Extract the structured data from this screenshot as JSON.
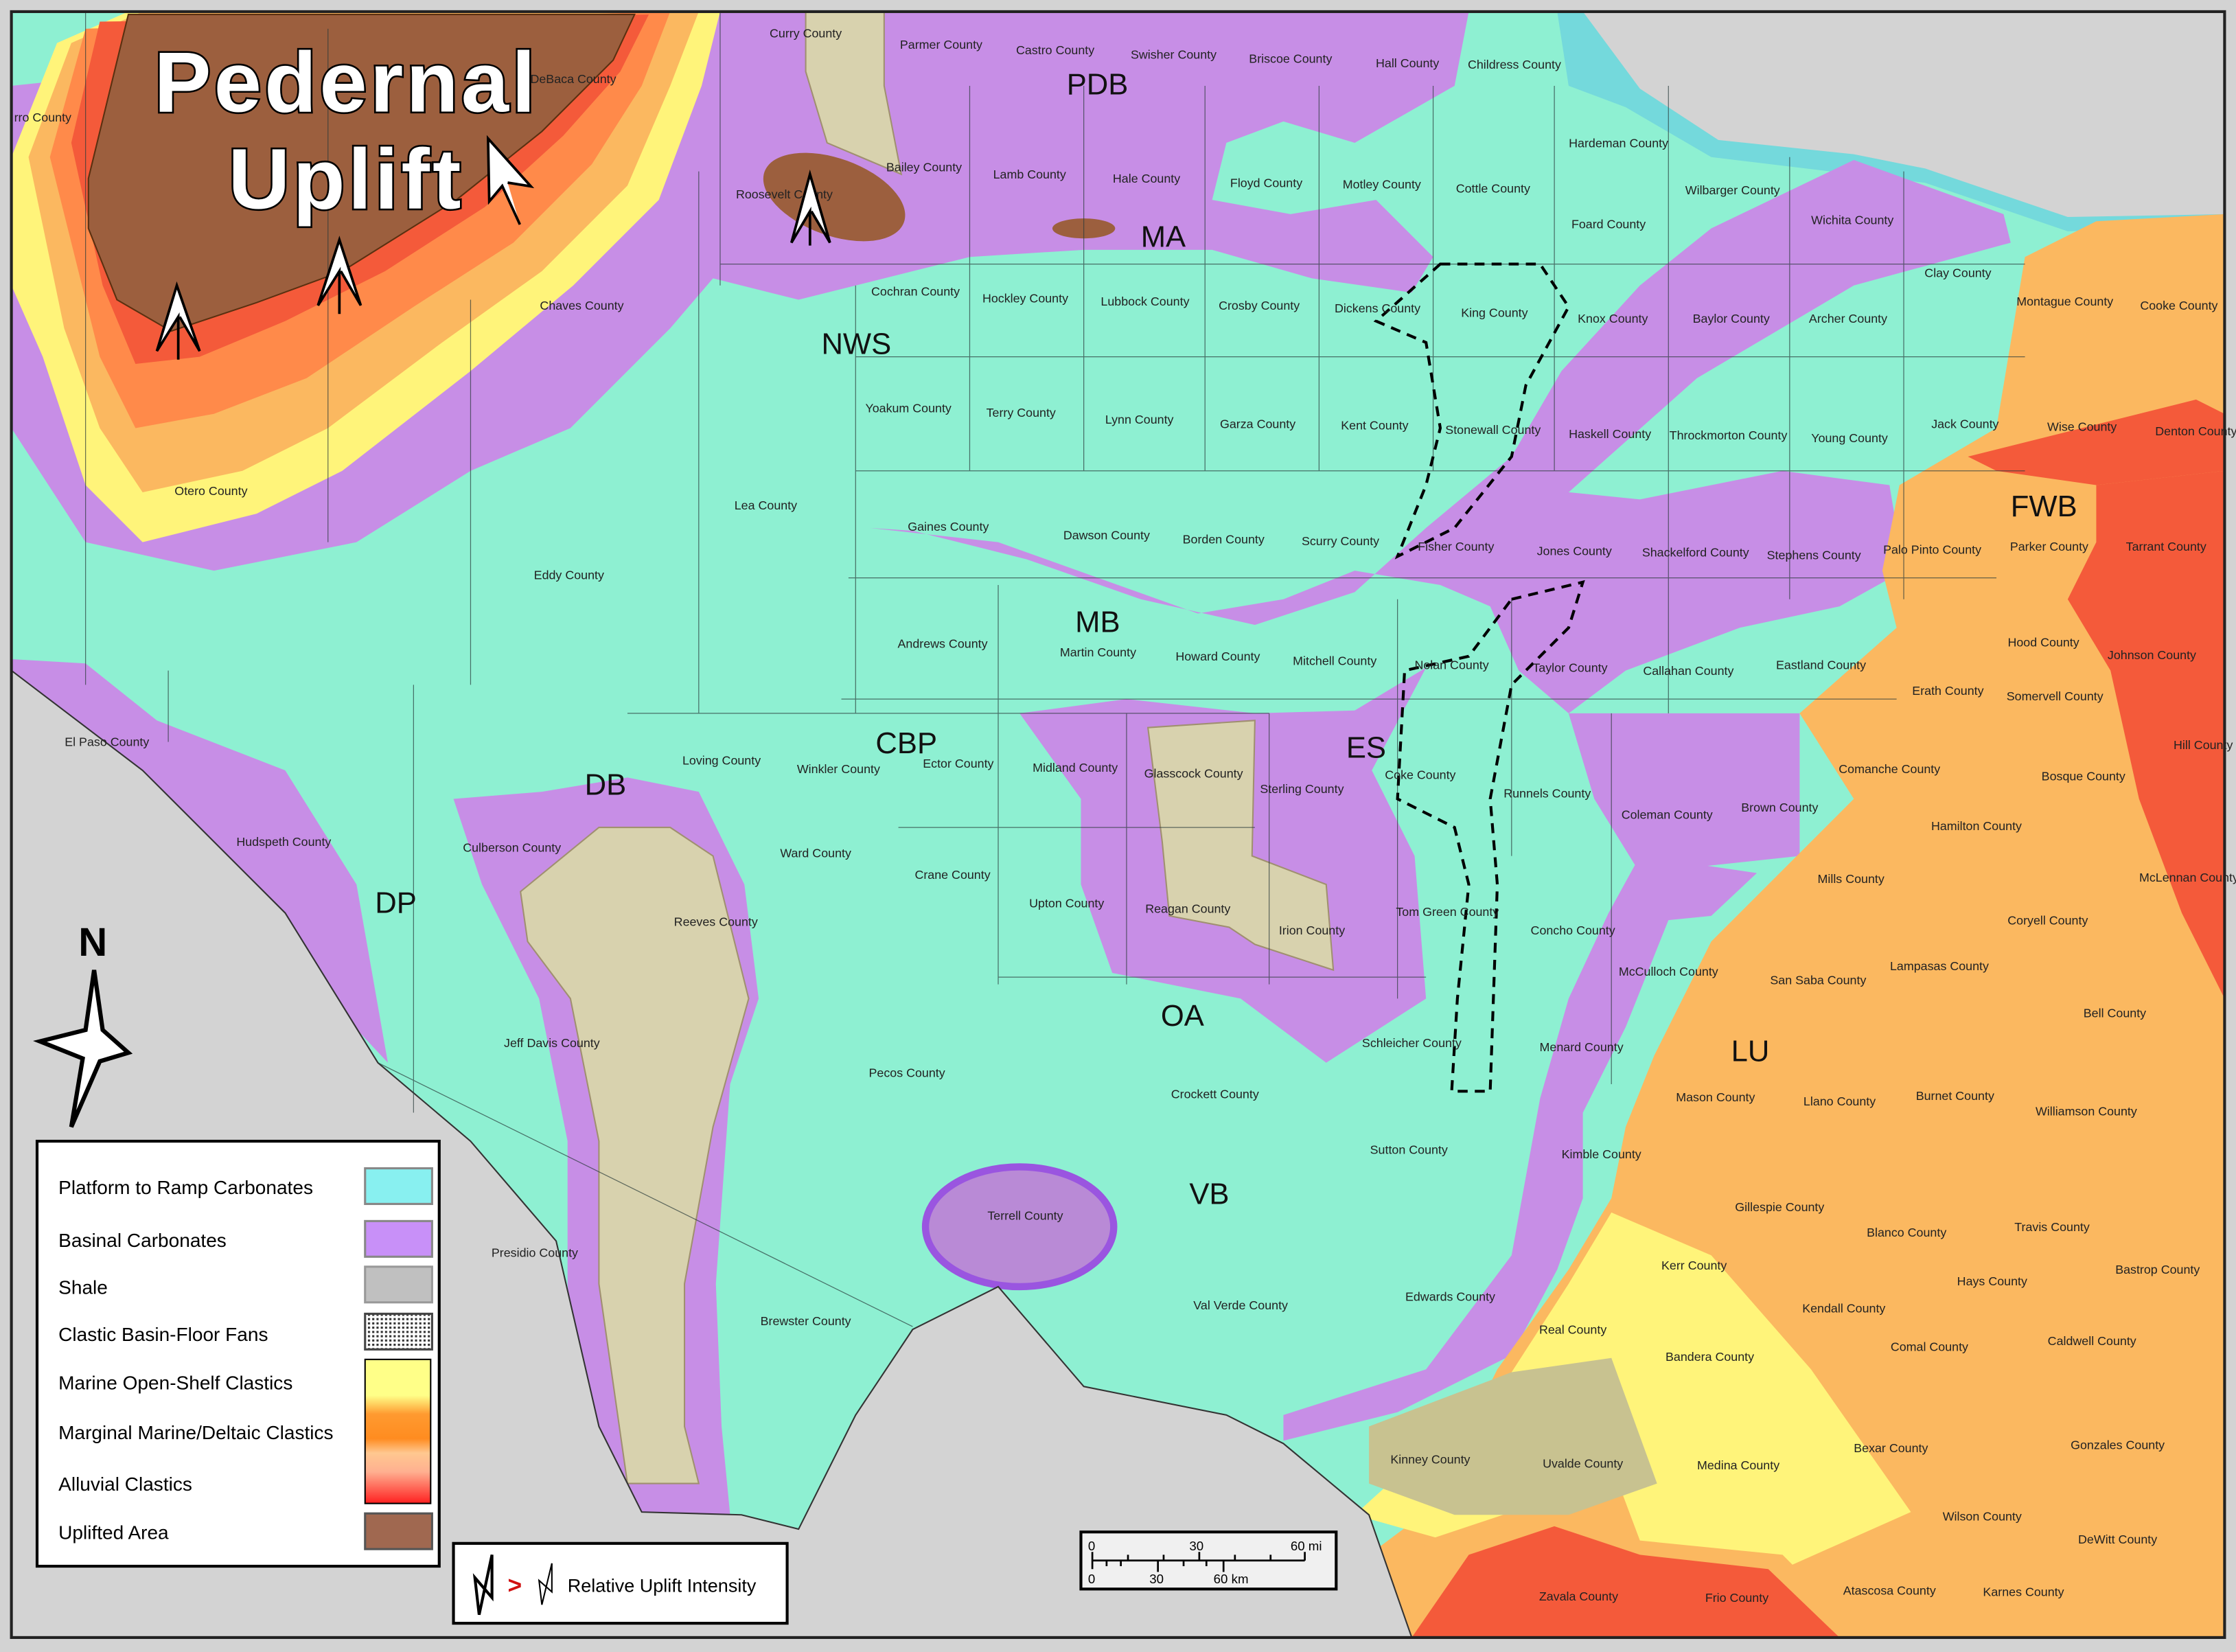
{
  "map": {
    "title_line1": "Pedernal",
    "title_line2": "Uplift",
    "north_label": "N",
    "regions": [
      "PDB",
      "MA",
      "NWS",
      "MB",
      "CBP",
      "DB",
      "DP",
      "ES",
      "OA",
      "VB",
      "LU",
      "FWB"
    ],
    "counties": [
      "Curry County",
      "Parmer County",
      "Castro County",
      "Swisher County",
      "Briscoe County",
      "Hall County",
      "Childress County",
      "DeBaca County",
      "rro County",
      "Roosevelt County",
      "Bailey County",
      "Lamb County",
      "Hale County",
      "Floyd County",
      "Motley County",
      "Cottle County",
      "Hardeman County",
      "Wilbarger County",
      "Foard County",
      "Wichita County",
      "Clay County",
      "Montague County",
      "Cooke County",
      "Chaves County",
      "Cochran County",
      "Hockley County",
      "Lubbock County",
      "Crosby County",
      "Dickens County",
      "King County",
      "Knox County",
      "Baylor County",
      "Archer County",
      "Yoakum County",
      "Terry County",
      "Lynn County",
      "Garza County",
      "Kent County",
      "Stonewall County",
      "Haskell County",
      "Throckmorton County",
      "Young County",
      "Jack County",
      "Wise County",
      "Denton County",
      "Otero County",
      "Lea County",
      "Gaines County",
      "Dawson County",
      "Borden County",
      "Scurry County",
      "Fisher County",
      "Jones County",
      "Shackelford County",
      "Stephens County",
      "Palo Pinto County",
      "Parker County",
      "Tarrant County",
      "Eddy County",
      "Andrews County",
      "Martin County",
      "Howard County",
      "Mitchell County",
      "Nolan County",
      "Taylor County",
      "Callahan County",
      "Eastland County",
      "Hood County",
      "Johnson County",
      "Erath County",
      "Somervell County",
      "El Paso County",
      "Loving County",
      "Winkler County",
      "Ector County",
      "Midland County",
      "Glasscock County",
      "Sterling County",
      "Coke County",
      "Runnels County",
      "Coleman County",
      "Brown County",
      "Comanche County",
      "Bosque County",
      "Hill County",
      "Hudspeth County",
      "Culberson County",
      "Ward County",
      "Crane County",
      "Upton County",
      "Reagan County",
      "Irion County",
      "Tom Green County",
      "Concho County",
      "Hamilton County",
      "Mills County",
      "McLennan County",
      "Reeves County",
      "Coryell County",
      "Lampasas County",
      "McCulloch County",
      "San Saba County",
      "Bell County",
      "Jeff Davis County",
      "Schleicher County",
      "Menard County",
      "Pecos County",
      "Crockett County",
      "Mason County",
      "Llano County",
      "Burnet County",
      "Williamson County",
      "Sutton County",
      "Kimble County",
      "Gillespie County",
      "Terrell County",
      "Blanco County",
      "Travis County",
      "Presidio County",
      "Kerr County",
      "Hays County",
      "Bastrop County",
      "Val Verde County",
      "Edwards County",
      "Kendall County",
      "Brewster County",
      "Real County",
      "Comal County",
      "Caldwell County",
      "Bandera County",
      "Bexar County",
      "Gonzales County",
      "Kinney County",
      "Uvalde County",
      "Medina County",
      "Wilson County",
      "DeWitt County",
      "Zavala County",
      "Frio County",
      "Atascosa County",
      "Karnes County"
    ]
  },
  "legend": {
    "items": [
      {
        "label": "Platform to Ramp Carbonates",
        "color": "#88f0f0"
      },
      {
        "label": "Basinal Carbonates",
        "color": "#c890f8"
      },
      {
        "label": "Shale",
        "color": "#c0c0c0"
      },
      {
        "label": "Clastic Basin-Floor Fans",
        "color": "#909090"
      },
      {
        "label": "Marine Open-Shelf Clastics",
        "color": "#ffff88"
      },
      {
        "label": "Marginal Marine/Deltaic Clastics",
        "color": "#ff9020"
      },
      {
        "label": "Alluvial Clastics",
        "color": "#ff2020"
      },
      {
        "label": "Uplifted Area",
        "color": "#a06850"
      }
    ]
  },
  "uplift_key": {
    "symbol": ">",
    "label": "Relative Uplift Intensity"
  },
  "scale_bar": {
    "mi_ticks": [
      "0",
      "30",
      "60 mi"
    ],
    "km_ticks": [
      "0",
      "30",
      "60 km"
    ]
  },
  "colors": {
    "platform": "#8ef0d2",
    "basinal": "#c78ee6",
    "shale": "#d8d2ae",
    "uplift": "#9c5f3e",
    "alluvial": "#f45a3a",
    "deltaic": "#fbb860",
    "shelf": "#fff47a",
    "water": "#74d9dc",
    "outside": "#d3d3d3"
  }
}
